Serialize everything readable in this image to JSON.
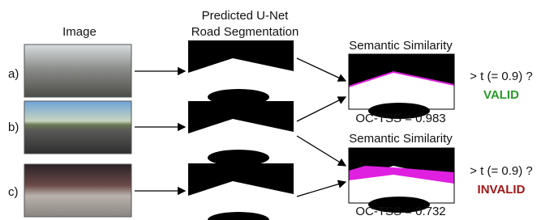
{
  "headers": {
    "image": "Image",
    "segmentation": [
      "Predicted U-Net",
      "Road Segmentation"
    ]
  },
  "rows": [
    {
      "label": "a)"
    },
    {
      "label": "b)"
    },
    {
      "label": "c)"
    }
  ],
  "comparisons": [
    {
      "title": "Semantic Similarity",
      "score": "OC-TSS = 0.983",
      "test": "> t (= 0.9) ?",
      "result": "VALID"
    },
    {
      "title": "Semantic Similarity",
      "score": "OC-TSS = 0.732",
      "test": "> t (= 0.9) ?",
      "result": "INVALID"
    }
  ]
}
